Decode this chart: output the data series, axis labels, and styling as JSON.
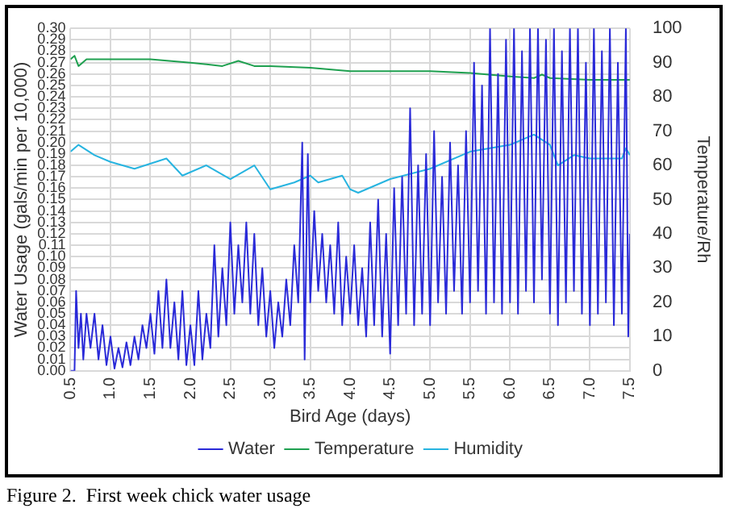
{
  "chart_data": {
    "type": "line",
    "xlabel": "Bird Age (days)",
    "ylabel": "Water Usage (gals/min per 10,000)",
    "y2label": "Temperature/Rh",
    "annotations": [
      "Figure 2.  First week chick water usage"
    ],
    "xlim": [
      0.5,
      7.5
    ],
    "xticks": [
      0.5,
      {
        "value": 1,
        "label": "1.0"
      },
      1.5,
      {
        "value": 2,
        "label": "2.0"
      },
      2.5,
      {
        "value": 3,
        "label": "3.0"
      },
      3.5,
      {
        "value": 4,
        "label": "4.0"
      },
      4.5,
      {
        "value": 5,
        "label": "5.0"
      },
      5.5,
      {
        "value": 6,
        "label": "6.0"
      },
      6.5,
      {
        "value": 7,
        "label": "7.0"
      },
      7.5
    ],
    "ylim": [
      0,
      0.3
    ],
    "yticks": [
      {
        "value": 0,
        "label": "0.00"
      },
      {
        "value": 0.01,
        "label": "0.01"
      },
      {
        "value": 0.02,
        "label": "0.02"
      },
      {
        "value": 0.03,
        "label": "0.03"
      },
      {
        "value": 0.04,
        "label": "0.04"
      },
      {
        "value": 0.05,
        "label": "0.05"
      },
      {
        "value": 0.06,
        "label": "0.06"
      },
      {
        "value": 0.07,
        "label": "0.07"
      },
      {
        "value": 0.08,
        "label": "0.08"
      },
      {
        "value": 0.09,
        "label": "0.09"
      },
      {
        "value": 0.1,
        "label": "0.10"
      },
      {
        "value": 0.11,
        "label": "0.11"
      },
      {
        "value": 0.12,
        "label": "0.12"
      },
      {
        "value": 0.13,
        "label": "0.13"
      },
      {
        "value": 0.14,
        "label": "0.14"
      },
      {
        "value": 0.15,
        "label": "0.15"
      },
      {
        "value": 0.16,
        "label": "0.16"
      },
      {
        "value": 0.17,
        "label": "0.17"
      },
      {
        "value": 0.18,
        "label": "0.18"
      },
      {
        "value": 0.19,
        "label": "0.19"
      },
      {
        "value": 0.2,
        "label": "0.20"
      },
      {
        "value": 0.21,
        "label": "0.21"
      },
      {
        "value": 0.22,
        "label": "0.22"
      },
      {
        "value": 0.23,
        "label": "0.23"
      },
      {
        "value": 0.24,
        "label": "0.24"
      },
      {
        "value": 0.25,
        "label": "0.25"
      },
      {
        "value": 0.26,
        "label": "0.26"
      },
      {
        "value": 0.27,
        "label": "0.27"
      },
      {
        "value": 0.28,
        "label": "0.28"
      },
      {
        "value": 0.29,
        "label": "0.29"
      },
      {
        "value": 0.3,
        "label": "0.30"
      }
    ],
    "y2lim": [
      0,
      100
    ],
    "y2ticks": [
      0,
      10,
      20,
      30,
      40,
      50,
      60,
      70,
      80,
      90,
      100
    ],
    "grid": true,
    "legend": "bottom",
    "marker": "none",
    "line_style": "solid",
    "series": [
      {
        "name": "Water",
        "color": "#2a2ad8",
        "x": [
          0.5,
          0.55,
          0.57,
          0.6,
          0.63,
          0.66,
          0.7,
          0.75,
          0.8,
          0.85,
          0.9,
          0.95,
          1.0,
          1.05,
          1.1,
          1.15,
          1.2,
          1.25,
          1.3,
          1.35,
          1.4,
          1.45,
          1.5,
          1.55,
          1.6,
          1.65,
          1.7,
          1.75,
          1.8,
          1.85,
          1.9,
          1.95,
          2.0,
          2.05,
          2.1,
          2.15,
          2.2,
          2.25,
          2.3,
          2.35,
          2.4,
          2.45,
          2.5,
          2.55,
          2.6,
          2.65,
          2.7,
          2.75,
          2.8,
          2.85,
          2.9,
          2.95,
          3.0,
          3.05,
          3.1,
          3.15,
          3.2,
          3.25,
          3.3,
          3.35,
          3.4,
          3.43,
          3.47,
          3.5,
          3.55,
          3.6,
          3.65,
          3.7,
          3.75,
          3.8,
          3.85,
          3.9,
          3.95,
          4.0,
          4.05,
          4.1,
          4.15,
          4.2,
          4.25,
          4.3,
          4.35,
          4.4,
          4.45,
          4.5,
          4.55,
          4.6,
          4.65,
          4.7,
          4.75,
          4.8,
          4.85,
          4.9,
          4.95,
          5.0,
          5.05,
          5.1,
          5.15,
          5.2,
          5.25,
          5.3,
          5.35,
          5.4,
          5.45,
          5.5,
          5.55,
          5.6,
          5.65,
          5.7,
          5.75,
          5.8,
          5.85,
          5.9,
          5.95,
          6.0,
          6.05,
          6.1,
          6.15,
          6.2,
          6.25,
          6.3,
          6.35,
          6.4,
          6.45,
          6.5,
          6.55,
          6.6,
          6.65,
          6.7,
          6.75,
          6.8,
          6.85,
          6.9,
          6.95,
          7.0,
          7.05,
          7.1,
          7.15,
          7.2,
          7.25,
          7.3,
          7.35,
          7.4,
          7.45,
          7.48,
          7.5
        ],
        "values": [
          0,
          0,
          0.07,
          0.02,
          0.05,
          0.01,
          0.05,
          0.02,
          0.05,
          0.01,
          0.04,
          0.005,
          0.03,
          0.002,
          0.02,
          0.003,
          0.025,
          0.005,
          0.03,
          0.01,
          0.04,
          0.02,
          0.05,
          0.015,
          0.07,
          0.02,
          0.08,
          0.02,
          0.06,
          0.01,
          0.07,
          0.005,
          0.04,
          0.005,
          0.07,
          0.01,
          0.05,
          0.02,
          0.11,
          0.03,
          0.09,
          0.04,
          0.13,
          0.05,
          0.11,
          0.06,
          0.13,
          0.05,
          0.12,
          0.04,
          0.09,
          0.03,
          0.07,
          0.02,
          0.06,
          0.03,
          0.08,
          0.04,
          0.11,
          0.06,
          0.2,
          0.01,
          0.19,
          0.06,
          0.14,
          0.07,
          0.12,
          0.06,
          0.11,
          0.05,
          0.13,
          0.04,
          0.1,
          0.05,
          0.11,
          0.04,
          0.09,
          0.03,
          0.13,
          0.04,
          0.15,
          0.03,
          0.12,
          0.015,
          0.16,
          0.04,
          0.17,
          0.05,
          0.23,
          0.04,
          0.18,
          0.05,
          0.19,
          0.04,
          0.21,
          0.06,
          0.17,
          0.05,
          0.2,
          0.07,
          0.18,
          0.05,
          0.21,
          0.06,
          0.27,
          0.07,
          0.25,
          0.05,
          0.3,
          0.06,
          0.26,
          0.05,
          0.29,
          0.06,
          0.3,
          0.05,
          0.28,
          0.07,
          0.3,
          0.06,
          0.3,
          0.08,
          0.29,
          0.05,
          0.3,
          0.04,
          0.28,
          0.06,
          0.3,
          0.07,
          0.3,
          0.05,
          0.27,
          0.04,
          0.3,
          0.05,
          0.28,
          0.06,
          0.3,
          0.04,
          0.27,
          0.05,
          0.3,
          0.03,
          0.12
        ]
      },
      {
        "name": "Temperature",
        "color": "#1fa050",
        "axis": "y2",
        "x": [
          0.5,
          0.55,
          0.6,
          0.7,
          1.0,
          1.5,
          2.0,
          2.4,
          2.6,
          2.8,
          3.0,
          3.5,
          4.0,
          4.5,
          5.0,
          5.5,
          6.0,
          6.3,
          6.4,
          6.5,
          7.0,
          7.5
        ],
        "values": [
          91,
          92,
          89,
          91,
          91,
          91,
          90,
          89,
          90.5,
          89,
          89,
          88.5,
          87.5,
          87.5,
          87.5,
          87,
          86,
          85.5,
          86.5,
          85.5,
          85,
          85
        ]
      },
      {
        "name": "Humidity",
        "color": "#27b4e0",
        "axis": "y2",
        "x": [
          0.5,
          0.6,
          0.8,
          1.0,
          1.3,
          1.7,
          1.9,
          2.2,
          2.5,
          2.8,
          3.0,
          3.3,
          3.5,
          3.6,
          3.9,
          4.0,
          4.1,
          4.5,
          5.0,
          5.5,
          6.0,
          6.3,
          6.5,
          6.6,
          6.8,
          7.0,
          7.4,
          7.45,
          7.5
        ],
        "values": [
          64,
          66,
          63,
          61,
          59,
          62,
          57,
          60,
          56,
          60,
          53,
          55,
          57,
          55,
          57,
          53,
          52,
          56,
          59,
          64,
          66,
          69,
          66,
          60,
          63,
          62,
          62,
          65,
          63
        ]
      }
    ]
  }
}
